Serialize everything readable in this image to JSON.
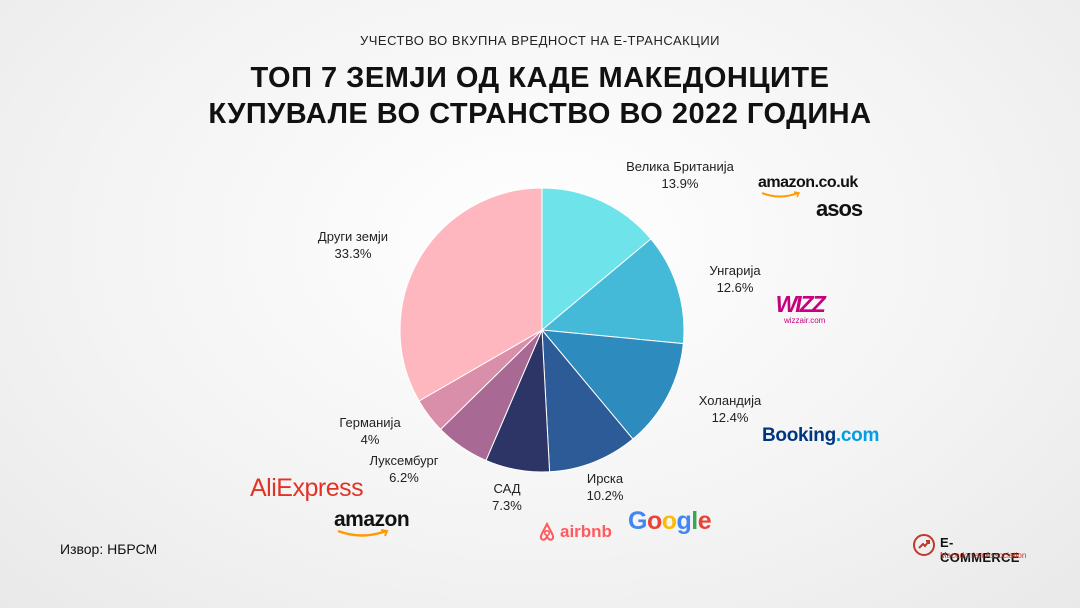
{
  "header": {
    "subtitle": "УЧЕСТВО ВО ВКУПНА ВРЕДНОСТ НА Е-ТРАНСАКЦИИ",
    "title_line1": "ТОП 7 ЗЕМЈИ ОД КАДЕ МАКЕДОНЦИТЕ",
    "title_line2": "КУПУВАЛЕ ВО СТРАНСТВО ВО 2022 ГОДИНА"
  },
  "chart_data": {
    "type": "pie",
    "start": "top",
    "direction": "clockwise",
    "slices": [
      {
        "name": "Велика Британија",
        "value": 13.9,
        "label": "13.9%",
        "color": "#6ee4ea"
      },
      {
        "name": "Унгарија",
        "value": 12.6,
        "label": "12.6%",
        "color": "#45bad8"
      },
      {
        "name": "Холандија",
        "value": 12.4,
        "label": "12.4%",
        "color": "#2e8bbd"
      },
      {
        "name": "Ирска",
        "value": 10.2,
        "label": "10.2%",
        "color": "#2d5b97"
      },
      {
        "name": "САД",
        "value": 7.3,
        "label": "7.3%",
        "color": "#2d3466"
      },
      {
        "name": "Луксембург",
        "value": 6.2,
        "label": "6.2%",
        "color": "#a86a94"
      },
      {
        "name": "Германија",
        "value": 4,
        "label": "4%",
        "color": "#d98ea9"
      },
      {
        "name": "Други земји",
        "value": 33.3,
        "label": "33.3%",
        "color": "#ffb7bf"
      }
    ]
  },
  "logos": {
    "amazon_uk": "amazon.co.uk",
    "asos": "asos",
    "wizz": "WIZZ",
    "wizz_sub": "wizzair.com",
    "booking": "Booking",
    "booking_tld": ".com",
    "aliexpress_a": "Ali",
    "aliexpress_b": "Express",
    "amazon": "amazon",
    "airbnb": "airbnb",
    "google": [
      "G",
      "o",
      "o",
      "g",
      "l",
      "e"
    ]
  },
  "colors": {
    "amazon_orange": "#f90",
    "wizz": "#c6007e",
    "booking_dark": "#003580",
    "booking_light": "#009fe3",
    "aliexpress": "#e43225",
    "airbnb": "#ff5a5f",
    "google": [
      "#4285F4",
      "#EA4335",
      "#FBBC05",
      "#4285F4",
      "#34A853",
      "#EA4335"
    ]
  },
  "footer": {
    "source": "Извор: НБРСМ",
    "brand_name": "E-COMMERCE",
    "brand_sub": "Macedonian Association"
  }
}
